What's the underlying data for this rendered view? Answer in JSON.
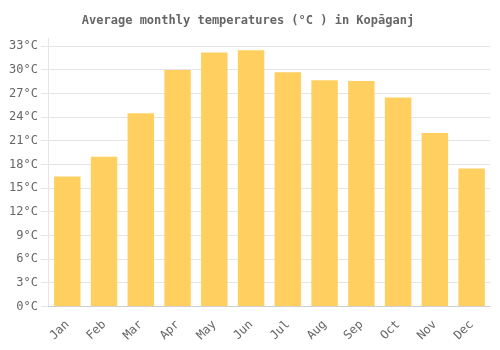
{
  "chart_data": {
    "type": "bar",
    "title": "Average monthly temperatures (°C ) in Kopāganj",
    "categories": [
      "Jan",
      "Feb",
      "Mar",
      "Apr",
      "May",
      "Jun",
      "Jul",
      "Aug",
      "Sep",
      "Oct",
      "Nov",
      "Dec"
    ],
    "values": [
      16.5,
      19.0,
      24.5,
      30.0,
      32.2,
      32.5,
      29.7,
      28.7,
      28.6,
      26.5,
      22.0,
      17.5
    ],
    "color": "#FFD060",
    "ylim": [
      0,
      34
    ],
    "yticks": [
      {
        "value": 0,
        "label": "0°C"
      },
      {
        "value": 3,
        "label": "3°C"
      },
      {
        "value": 6,
        "label": "6°C"
      },
      {
        "value": 9,
        "label": "9°C"
      },
      {
        "value": 12,
        "label": "12°C"
      },
      {
        "value": 15,
        "label": "15°C"
      },
      {
        "value": 18,
        "label": "18°C"
      },
      {
        "value": 21,
        "label": "21°C"
      },
      {
        "value": 24,
        "label": "24°C"
      },
      {
        "value": 27,
        "label": "27°C"
      },
      {
        "value": 30,
        "label": "30°C"
      },
      {
        "value": 33,
        "label": "33°C"
      }
    ],
    "grid": true
  }
}
